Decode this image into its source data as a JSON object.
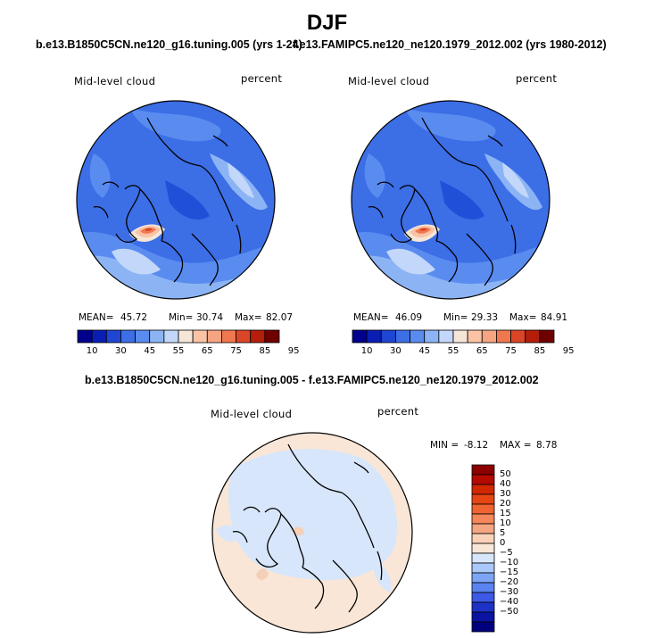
{
  "main_title": "DJF",
  "panels": [
    {
      "subtitle": "b.e13.B1850C5CN.ne120_g16.tuning.005 (yrs 1-24)",
      "left_label": "Mid-level cloud",
      "right_label": "percent",
      "stats": {
        "mean_label": "MEAN=",
        "mean": "45.72",
        "min_label": "Min=",
        "min": "30.74",
        "max_label": "Max=",
        "max": "82.07"
      }
    },
    {
      "subtitle": "f.e13.FAMIPC5.ne120_ne120.1979_2012.002 (yrs 1980-2012)",
      "left_label": "Mid-level cloud",
      "right_label": "percent",
      "stats": {
        "mean_label": "MEAN=",
        "mean": "46.09",
        "min_label": "Min=",
        "min": "29.33",
        "max_label": "Max=",
        "max": "84.91"
      }
    },
    {
      "subtitle": "b.e13.B1850C5CN.ne120_g16.tuning.005 - f.e13.FAMIPC5.ne120_ne120.1979_2012.002",
      "left_label": "Mid-level cloud",
      "right_label": "percent",
      "stats": {
        "min_label": "MIN =",
        "min": "-8.12",
        "max_label": "MAX =",
        "max": "8.78"
      }
    }
  ],
  "chart_data": [
    {
      "type": "heatmap",
      "projection": "north-polar-stereographic",
      "title": "b.e13.B1850C5CN.ne120_g16.tuning.005 (yrs 1-24)",
      "variable": "Mid-level cloud",
      "units": "percent",
      "mean": 45.72,
      "min": 30.74,
      "max": 82.07,
      "colorbar_levels": [
        10,
        30,
        45,
        55,
        65,
        75,
        85,
        95
      ],
      "colorbar_colors": [
        "#00008c",
        "#0a1eb4",
        "#1e46d2",
        "#3c6ee6",
        "#5a8cf0",
        "#8cb4f5",
        "#c3d7fa",
        "#f5e6d7",
        "#fac3a5",
        "#f5a582",
        "#f07850",
        "#dc4628",
        "#b41e0a",
        "#6e0000"
      ]
    },
    {
      "type": "heatmap",
      "projection": "north-polar-stereographic",
      "title": "f.e13.FAMIPC5.ne120_ne120.1979_2012.002 (yrs 1980-2012)",
      "variable": "Mid-level cloud",
      "units": "percent",
      "mean": 46.09,
      "min": 29.33,
      "max": 84.91,
      "colorbar_levels": [
        10,
        30,
        45,
        55,
        65,
        75,
        85,
        95
      ]
    },
    {
      "type": "heatmap",
      "projection": "north-polar-stereographic",
      "title": "b.e13.B1850C5CN.ne120_g16.tuning.005 - f.e13.FAMIPC5.ne120_ne120.1979_2012.002",
      "variable": "Mid-level cloud",
      "units": "percent",
      "min": -8.12,
      "max": 8.78,
      "colorbar_levels": [
        50,
        40,
        30,
        20,
        15,
        10,
        5,
        0,
        -5,
        -10,
        -15,
        -20,
        -30,
        -40,
        -50
      ],
      "colorbar_colors": [
        "#8c0000",
        "#b40a00",
        "#d22800",
        "#e64614",
        "#f06432",
        "#f5875a",
        "#f5a582",
        "#fad2b9",
        "#fae6d7",
        "#d7e6fa",
        "#aac8fa",
        "#7da5f5",
        "#5a82f0",
        "#3c5ae6",
        "#1e32c8",
        "#0a14a0",
        "#00007d"
      ]
    }
  ],
  "colors": {
    "map_base": "#3c6ee6",
    "diff_base": "#d7e6fa"
  }
}
